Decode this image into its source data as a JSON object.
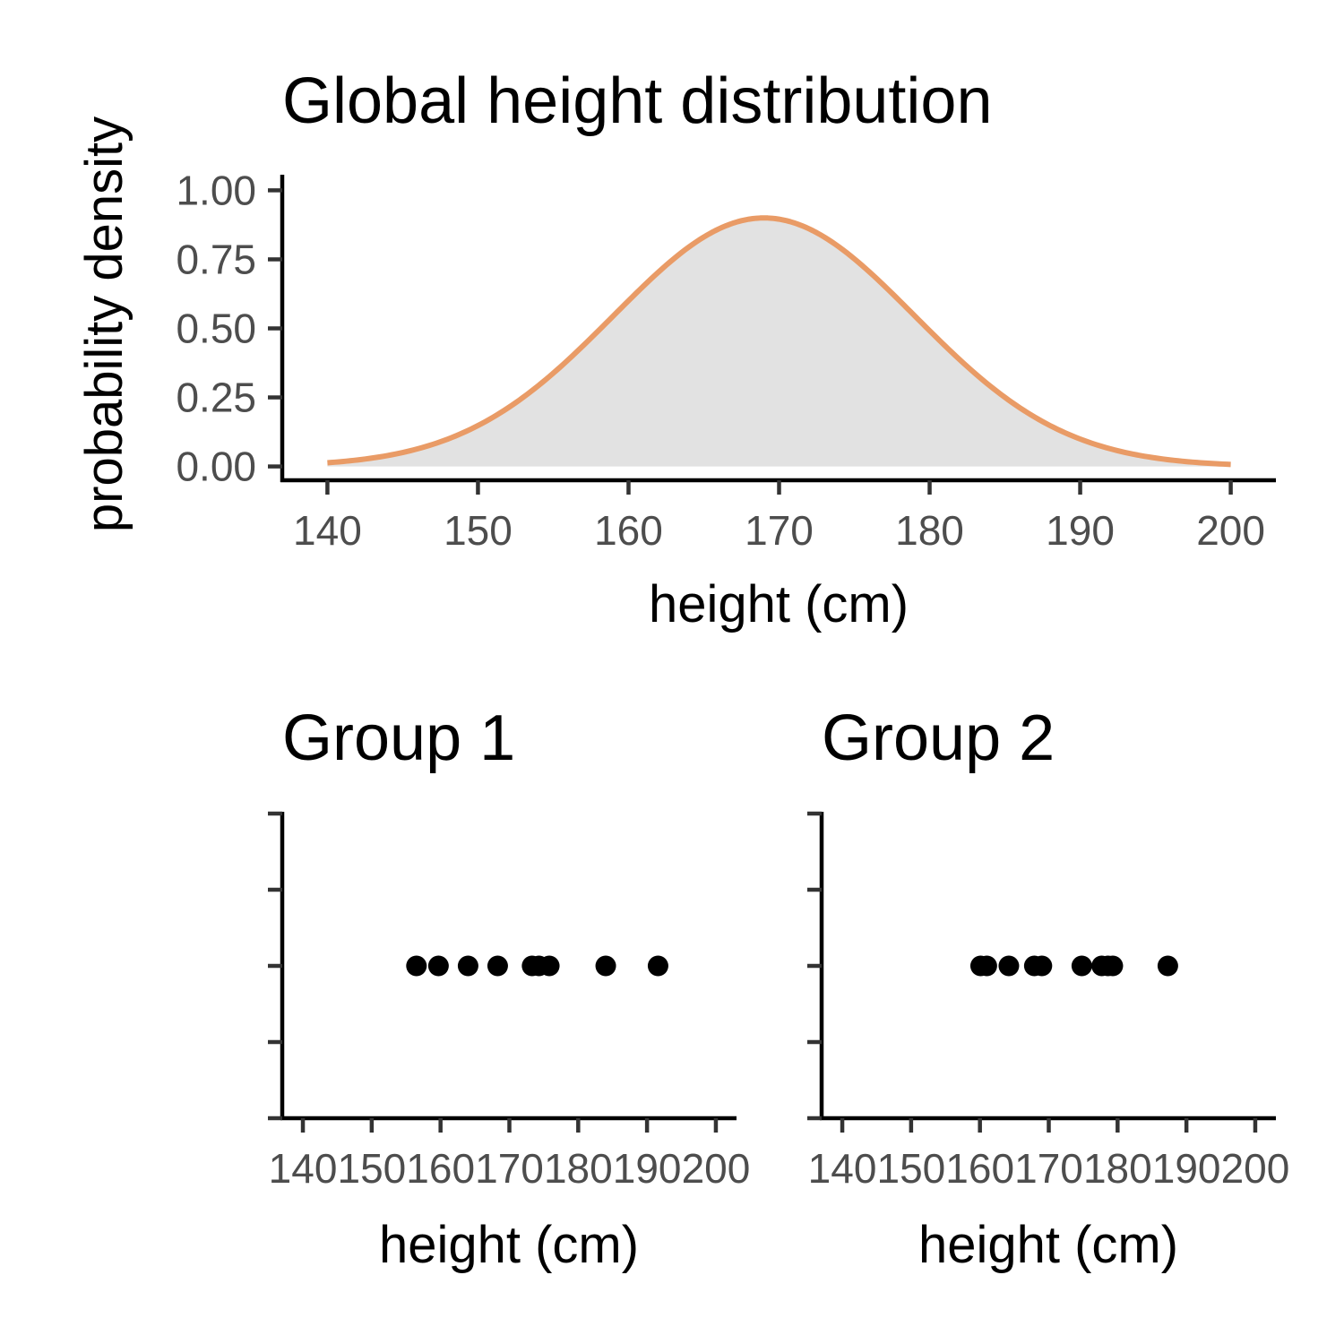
{
  "chart_data": [
    {
      "type": "area",
      "title": "Global height distribution",
      "xlabel": "height (cm)",
      "ylabel": "probability density",
      "xlim": [
        137,
        203
      ],
      "ylim": [
        -0.05,
        1.05
      ],
      "x_ticks": [
        140,
        150,
        160,
        170,
        180,
        190,
        200
      ],
      "y_ticks": [
        0.0,
        0.25,
        0.5,
        0.75,
        1.0
      ],
      "y_tick_labels": [
        "0.00",
        "0.25",
        "0.50",
        "0.75",
        "1.00"
      ],
      "x_tick_labels": [
        "140",
        "150",
        "160",
        "170",
        "180",
        "190",
        "200"
      ],
      "curve": {
        "kind": "normal density (scaled)",
        "mean": 169,
        "sd": 10,
        "peak": 0.9,
        "x_range": [
          140,
          200
        ]
      },
      "grid": false,
      "colors": {
        "line": "#e99b66",
        "fill": "#e2e2e2"
      }
    },
    {
      "type": "scatter",
      "title": "Group 1",
      "xlabel": "height (cm)",
      "ylabel": "",
      "xlim": [
        137,
        203
      ],
      "ylim": [
        0,
        4
      ],
      "x_ticks": [
        140,
        150,
        160,
        170,
        180,
        190,
        200
      ],
      "x_tick_labels": [
        "140",
        "150",
        "160",
        "170",
        "180",
        "190",
        "200"
      ],
      "y_ticks": [
        0,
        1,
        2,
        3,
        4
      ],
      "y_tick_labels": [
        "",
        "",
        "",
        "",
        ""
      ],
      "x": [
        156.5,
        159.7,
        164.0,
        168.3,
        173.3,
        174.3,
        175.8,
        184.0,
        191.6
      ],
      "y": [
        2,
        2,
        2,
        2,
        2,
        2,
        2,
        2,
        2
      ],
      "grid": false,
      "colors": {
        "point": "#000000"
      }
    },
    {
      "type": "scatter",
      "title": "Group 2",
      "xlabel": "height (cm)",
      "ylabel": "",
      "xlim": [
        137,
        203
      ],
      "ylim": [
        0,
        4
      ],
      "x_ticks": [
        140,
        150,
        160,
        170,
        180,
        190,
        200
      ],
      "x_tick_labels": [
        "140",
        "150",
        "160",
        "170",
        "180",
        "190",
        "200"
      ],
      "y_ticks": [
        0,
        1,
        2,
        3,
        4
      ],
      "y_tick_labels": [
        "",
        "",
        "",
        "",
        ""
      ],
      "x": [
        160.1,
        161.0,
        164.2,
        167.9,
        169.0,
        174.8,
        177.7,
        178.6,
        179.3,
        187.3
      ],
      "y": [
        2,
        2,
        2,
        2,
        2,
        2,
        2,
        2,
        2,
        2
      ],
      "grid": false,
      "colors": {
        "point": "#000000"
      }
    }
  ]
}
